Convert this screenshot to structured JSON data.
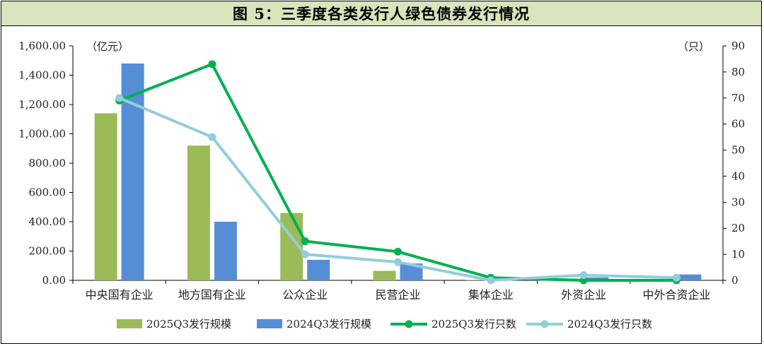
{
  "title": "图 5：三季度各类发行人绿色债券发行情况",
  "colors": {
    "bar2025": "#9bbb59",
    "bar2024": "#558ed5",
    "line2025": "#00b050",
    "line2024": "#92cddc",
    "title_bg": "#d8e4bc"
  },
  "chart_data": {
    "type": "bar+line",
    "categories": [
      "中央国有企业",
      "地方国有企业",
      "公众企业",
      "民营企业",
      "集体企业",
      "外资企业",
      "中外合资企业"
    ],
    "left_axis": {
      "unit_label": "（亿元）",
      "range": [
        0,
        1600
      ],
      "tick_labels": [
        "0.00",
        "200.00",
        "400.00",
        "600.00",
        "800.00",
        "1,000.00",
        "1,200.00",
        "1,400.00",
        "1,600.00"
      ],
      "tick_values": [
        0,
        200,
        400,
        600,
        800,
        1000,
        1200,
        1400,
        1600
      ]
    },
    "right_axis": {
      "unit_label": "（只）",
      "range": [
        0,
        90
      ],
      "tick_labels": [
        "0",
        "10",
        "20",
        "30",
        "40",
        "50",
        "60",
        "70",
        "80",
        "90"
      ],
      "tick_values": [
        0,
        10,
        20,
        30,
        40,
        50,
        60,
        70,
        80,
        90
      ]
    },
    "series": [
      {
        "name": "2025Q3发行规模",
        "kind": "bar",
        "axis": "left",
        "values": [
          1140,
          920,
          460,
          65,
          2,
          5,
          2
        ]
      },
      {
        "name": "2024Q3发行规模",
        "kind": "bar",
        "axis": "left",
        "values": [
          1480,
          400,
          140,
          115,
          3,
          20,
          40
        ]
      },
      {
        "name": "2025Q3发行只数",
        "kind": "line",
        "axis": "right",
        "values": [
          69,
          83,
          15,
          11,
          1,
          0,
          0
        ]
      },
      {
        "name": "2024Q3发行只数",
        "kind": "line",
        "axis": "right",
        "values": [
          70,
          55,
          10,
          7,
          0,
          2,
          1
        ]
      }
    ],
    "legend_position": "bottom",
    "grid": false
  }
}
